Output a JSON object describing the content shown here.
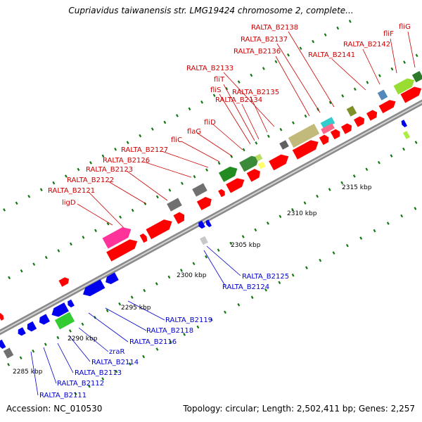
{
  "header": {
    "title": "Cupriavidus taiwanensis str. LMG19424 chromosome 2, complete..."
  },
  "footer": {
    "accession": "Accession: NC_010530",
    "summary": "Topology: circular; Length: 2,502,411 bp; Genes: 2,257"
  },
  "colors": {
    "forward_label": "#cc0000",
    "reverse_label": "#0000cc",
    "backbone": "#909090",
    "gene_red": "#ff0000",
    "gene_blue": "#0000ee"
  },
  "axis_ticks": [
    "2285 kbp",
    "2290 kbp",
    "2295 kbp",
    "2300 kbp",
    "2305 kbp",
    "2310 kbp",
    "2315 kbp"
  ],
  "forward_labels": [
    "ligD",
    "RALTA_B2121",
    "RALTA_B2122",
    "RALTA_B2123",
    "RALTA_B2126",
    "RALTA_B2127",
    "fliC",
    "flaG",
    "fliD",
    "RALTA_B2134",
    "fliS",
    "fliT",
    "RALTA_B2135",
    "RALTA_B2133",
    "RALTA_B2136",
    "RALTA_B2137",
    "RALTA_B2138",
    "RALTA_B2141",
    "RALTA_B2142",
    "fliF",
    "fliG"
  ],
  "reverse_labels": [
    "RALTA_B2125",
    "RALTA_B2124",
    "RALTA_B2119",
    "RALTA_B2118",
    "RALTA_B2116",
    "zraR",
    "RALTA_B2114",
    "RALTA_B2113",
    "RALTA_B2112",
    "RALTA_B2111"
  ]
}
